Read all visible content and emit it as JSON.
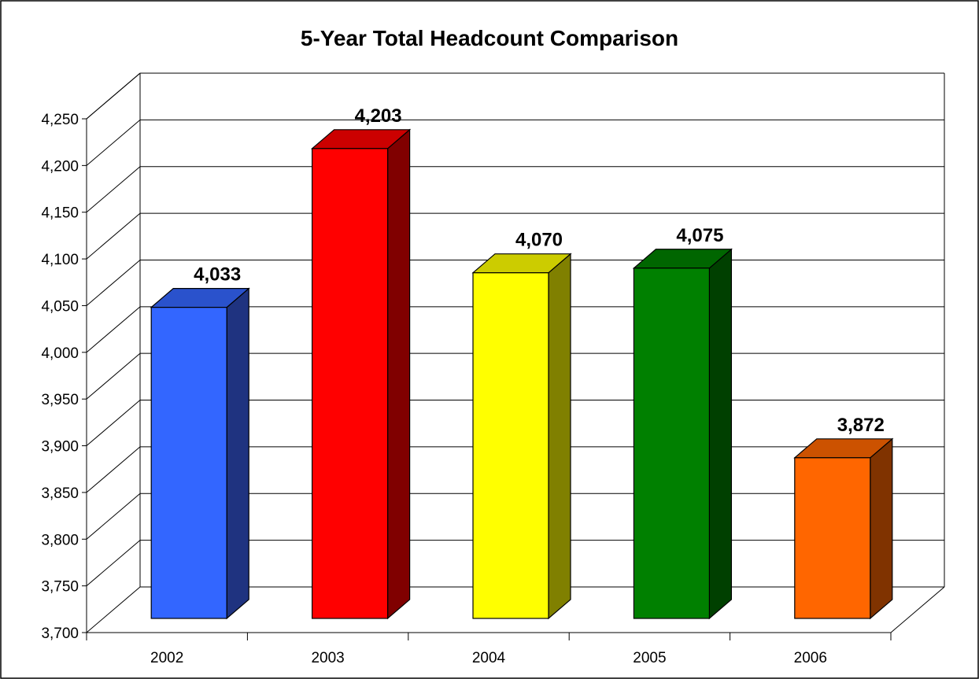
{
  "chart_data": {
    "type": "bar",
    "title": "5-Year Total Headcount Comparison",
    "xlabel": "",
    "ylabel": "",
    "categories": [
      "2002",
      "2003",
      "2004",
      "2005",
      "2006"
    ],
    "values": [
      4033,
      4203,
      4070,
      4075,
      3872
    ],
    "value_labels": [
      "4,033",
      "4,203",
      "4,070",
      "4,075",
      "3,872"
    ],
    "ylim": [
      3700,
      4250
    ],
    "yticks": [
      3700,
      3750,
      3800,
      3850,
      3900,
      3950,
      4000,
      4050,
      4100,
      4150,
      4200,
      4250
    ],
    "ytick_labels": [
      "3,700",
      "3,750",
      "3,800",
      "3,850",
      "3,900",
      "3,950",
      "4,000",
      "4,050",
      "4,100",
      "4,150",
      "4,200",
      "4,250"
    ],
    "grid": true,
    "style": "3d-column",
    "legend": "none",
    "bar_colors": [
      {
        "front": "#3366FF",
        "side": "#1F3380",
        "top": "#2A52CC"
      },
      {
        "front": "#FF0000",
        "side": "#800000",
        "top": "#CC0000"
      },
      {
        "front": "#FFFF00",
        "side": "#808000",
        "top": "#CCCC00"
      },
      {
        "front": "#008000",
        "side": "#004000",
        "top": "#006600"
      },
      {
        "front": "#FF6600",
        "side": "#803300",
        "top": "#CC5200"
      }
    ]
  }
}
